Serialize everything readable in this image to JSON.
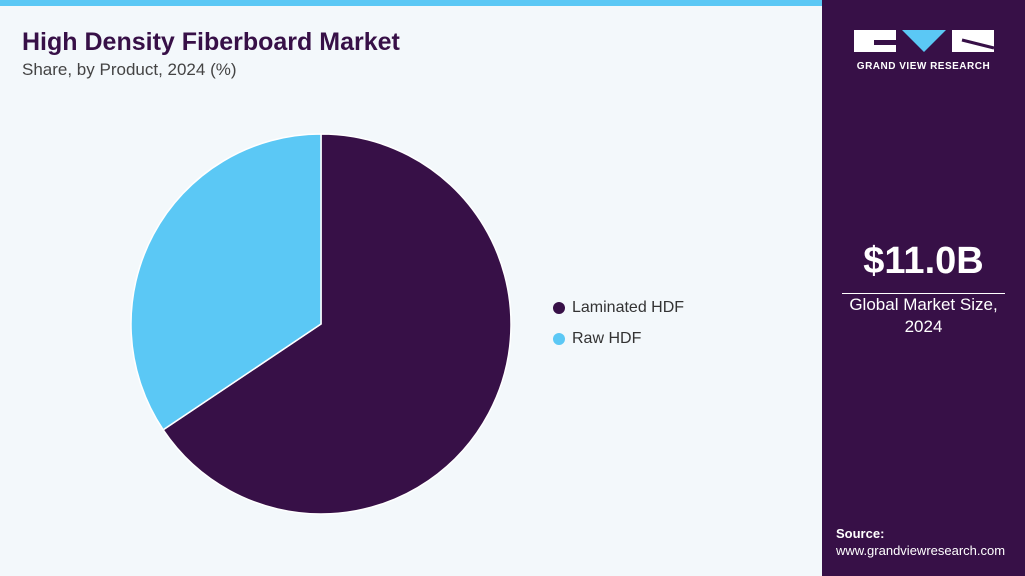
{
  "chart_data": {
    "type": "pie",
    "title": "High Density Fiberboard Market",
    "subtitle": "Share, by Product, 2024 (%)",
    "categories": [
      "Laminated HDF",
      "Raw HDF"
    ],
    "values": [
      65.6,
      34.4
    ],
    "colors": [
      "#371047",
      "#5bc8f5"
    ]
  },
  "sidebar": {
    "logo_text": "GRAND VIEW RESEARCH",
    "market_size": "$11.0B",
    "market_size_label": "Global Market Size, 2024",
    "source_label": "Source:",
    "source_url": "www.grandviewresearch.com"
  }
}
